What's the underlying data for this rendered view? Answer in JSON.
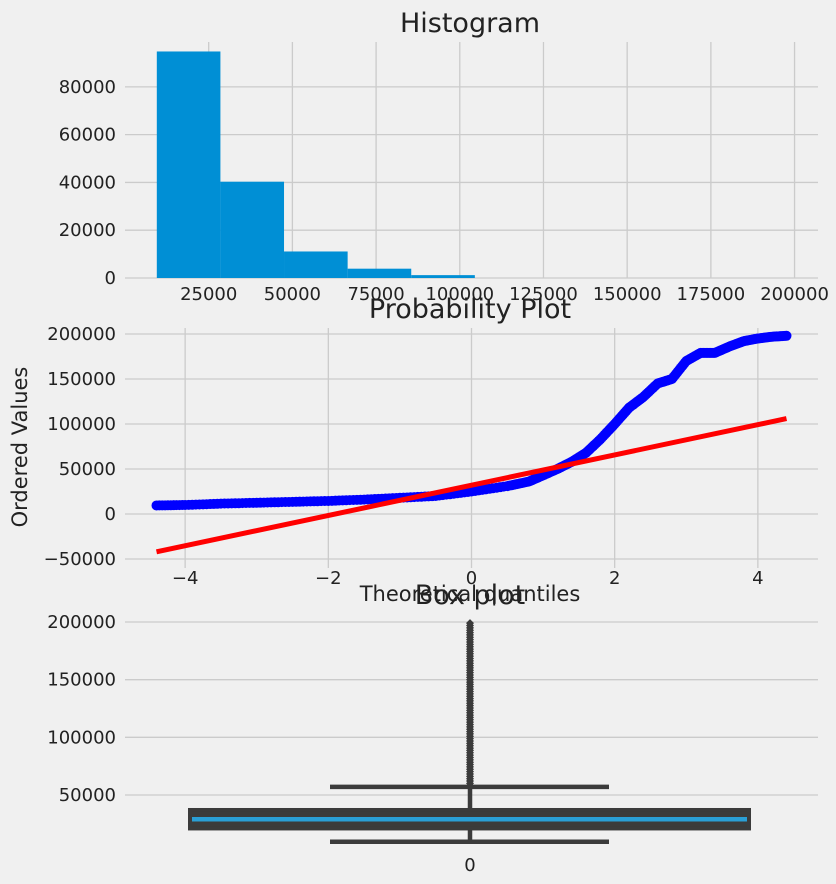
{
  "colors": {
    "background": "#f0f0f0",
    "grid": "#cbcbcb",
    "hist_fill": "#008fd5",
    "scatter": "#0000ff",
    "fit_line": "#ff0000",
    "box_edge": "#3b3b3b",
    "median": "#2a9fd6"
  },
  "chart_data": [
    {
      "type": "bar",
      "title": "Histogram",
      "xlabel": "",
      "ylabel": "",
      "xlim": [
        0,
        207000
      ],
      "ylim": [
        0,
        95000
      ],
      "x_ticks": [
        "25000",
        "50000",
        "75000",
        "100000",
        "125000",
        "150000",
        "175000",
        "200000"
      ],
      "y_ticks": [
        "0",
        "20000",
        "40000",
        "60000",
        "80000"
      ],
      "bins": [
        {
          "start": 9500,
          "end": 28500,
          "count": 94800
        },
        {
          "start": 28500,
          "end": 47500,
          "count": 40300
        },
        {
          "start": 47500,
          "end": 66500,
          "count": 11100
        },
        {
          "start": 66500,
          "end": 85500,
          "count": 3900
        },
        {
          "start": 85500,
          "end": 104500,
          "count": 1200
        },
        {
          "start": 104500,
          "end": 123500,
          "count": 0
        },
        {
          "start": 123500,
          "end": 142500,
          "count": 0
        },
        {
          "start": 142500,
          "end": 161500,
          "count": 0
        },
        {
          "start": 161500,
          "end": 180500,
          "count": 0
        },
        {
          "start": 180500,
          "end": 199500,
          "count": 0
        }
      ],
      "grid": true
    },
    {
      "type": "scatter",
      "title": "Probability Plot",
      "xlabel": "Theoretical quantiles",
      "ylabel": "Ordered Values",
      "xlim": [
        -4.84,
        4.84
      ],
      "ylim": [
        -50000,
        210000
      ],
      "x_ticks": [
        "−4",
        "−2",
        "0",
        "2",
        "4"
      ],
      "y_ticks": [
        "−50000",
        "0",
        "50000",
        "100000",
        "150000",
        "200000"
      ],
      "quantile_curve": [
        [
          -4.4,
          9500
        ],
        [
          -4.0,
          10000
        ],
        [
          -3.5,
          11500
        ],
        [
          -3.0,
          12500
        ],
        [
          -2.5,
          13500
        ],
        [
          -2.0,
          14500
        ],
        [
          -1.5,
          16000
        ],
        [
          -1.0,
          18000
        ],
        [
          -0.5,
          20000
        ],
        [
          0.0,
          25000
        ],
        [
          0.5,
          31000
        ],
        [
          0.8,
          36000
        ],
        [
          1.0,
          43000
        ],
        [
          1.2,
          50000
        ],
        [
          1.4,
          58000
        ],
        [
          1.6,
          68000
        ],
        [
          1.8,
          83000
        ],
        [
          2.0,
          100000
        ],
        [
          2.2,
          118000
        ],
        [
          2.4,
          130000
        ],
        [
          2.6,
          145000
        ],
        [
          2.8,
          150000
        ],
        [
          3.0,
          170000
        ],
        [
          3.2,
          179000
        ],
        [
          3.4,
          179000
        ],
        [
          3.6,
          186000
        ],
        [
          3.8,
          192000
        ],
        [
          4.0,
          195000
        ],
        [
          4.2,
          197000
        ],
        [
          4.4,
          198000
        ]
      ],
      "fit_line": {
        "x": [
          -4.4,
          4.4
        ],
        "y": [
          -42000,
          106000
        ]
      },
      "grid": true
    },
    {
      "type": "box",
      "title": "Box plot",
      "xlabel": "",
      "ylabel": "",
      "categories": [
        "0"
      ],
      "ylim": [
        5000,
        205000
      ],
      "y_ticks": [
        "50000",
        "100000",
        "150000",
        "200000"
      ],
      "box": {
        "whisker_low": 9500,
        "q1": 21000,
        "median": 29000,
        "q3": 37000,
        "whisker_high": 57000,
        "flier_min": 58000,
        "flier_max": 199000
      },
      "grid": true
    }
  ]
}
